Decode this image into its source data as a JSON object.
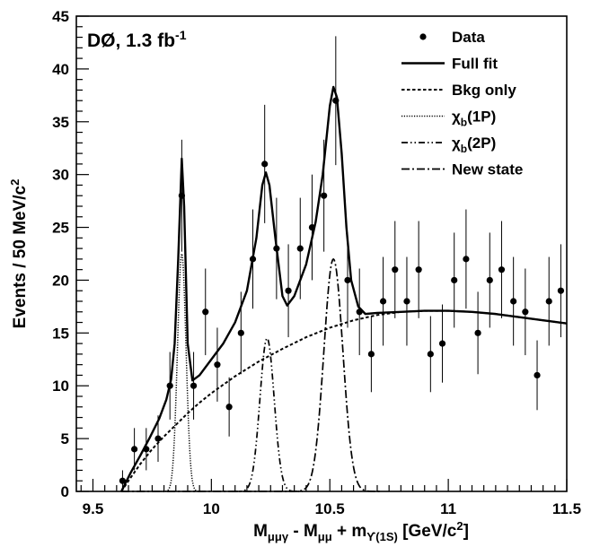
{
  "chart_data": {
    "type": "scatter",
    "annotation": {
      "main": "DØ, 1.3 fb",
      "sup": "-1"
    },
    "ylabel": {
      "main": "Events / 50 MeV/c",
      "sup": "2"
    },
    "xlabel": {
      "parts": [
        {
          "t": "M",
          "s": "n"
        },
        {
          "t": "μμγ",
          "s": "sub"
        },
        {
          "t": " - M",
          "s": "n"
        },
        {
          "t": "μμ",
          "s": "sub"
        },
        {
          "t": " + m",
          "s": "n"
        },
        {
          "t": "ϒ(1S)",
          "s": "sub"
        },
        {
          "t": " [GeV/c",
          "s": "n"
        },
        {
          "t": "2",
          "s": "sup"
        },
        {
          "t": "]",
          "s": "n"
        }
      ]
    },
    "xlim": [
      9.43,
      11.5
    ],
    "ylim": [
      0,
      45
    ],
    "xticks": [
      9.5,
      10,
      10.5,
      11,
      11.5
    ],
    "xtick_labels": [
      "9.5",
      "10",
      "10.5",
      "11",
      "11.5"
    ],
    "yticks": [
      0,
      5,
      10,
      15,
      20,
      25,
      30,
      35,
      40,
      45
    ],
    "ytick_labels": [
      "0",
      "5",
      "10",
      "15",
      "20",
      "25",
      "30",
      "35",
      "40",
      "45"
    ],
    "legend_position": "top-right",
    "legend": [
      {
        "key": "data",
        "parts": [
          {
            "t": "Data",
            "s": "n"
          }
        ]
      },
      {
        "key": "fullfit",
        "parts": [
          {
            "t": "Full fit",
            "s": "n"
          }
        ]
      },
      {
        "key": "bkg",
        "parts": [
          {
            "t": "Bkg only",
            "s": "n"
          }
        ]
      },
      {
        "key": "chi1p",
        "parts": [
          {
            "t": "χ",
            "s": "n"
          },
          {
            "t": "b",
            "s": "sub"
          },
          {
            "t": "(1P)",
            "s": "n"
          }
        ]
      },
      {
        "key": "chi2p",
        "parts": [
          {
            "t": "χ",
            "s": "n"
          },
          {
            "t": "b",
            "s": "sub"
          },
          {
            "t": "(2P)",
            "s": "n"
          }
        ]
      },
      {
        "key": "newstate",
        "parts": [
          {
            "t": "New state",
            "s": "n"
          }
        ]
      }
    ],
    "data_points": [
      {
        "x": 9.625,
        "y": 1,
        "err": 1
      },
      {
        "x": 9.675,
        "y": 4,
        "err": 2
      },
      {
        "x": 9.725,
        "y": 4,
        "err": 2
      },
      {
        "x": 9.775,
        "y": 5,
        "err": 2.2
      },
      {
        "x": 9.825,
        "y": 10,
        "err": 3.2
      },
      {
        "x": 9.875,
        "y": 28,
        "err": 5.3
      },
      {
        "x": 9.925,
        "y": 10,
        "err": 3.2
      },
      {
        "x": 9.975,
        "y": 17,
        "err": 4.1
      },
      {
        "x": 10.025,
        "y": 12,
        "err": 3.5
      },
      {
        "x": 10.075,
        "y": 8,
        "err": 2.8
      },
      {
        "x": 10.125,
        "y": 15,
        "err": 3.9
      },
      {
        "x": 10.175,
        "y": 22,
        "err": 4.7
      },
      {
        "x": 10.225,
        "y": 31,
        "err": 5.6
      },
      {
        "x": 10.275,
        "y": 23,
        "err": 4.8
      },
      {
        "x": 10.325,
        "y": 19,
        "err": 4.4
      },
      {
        "x": 10.375,
        "y": 23,
        "err": 4.8
      },
      {
        "x": 10.425,
        "y": 25,
        "err": 5
      },
      {
        "x": 10.475,
        "y": 28,
        "err": 5.3
      },
      {
        "x": 10.525,
        "y": 37,
        "err": 6.1
      },
      {
        "x": 10.575,
        "y": 20,
        "err": 4.5
      },
      {
        "x": 10.625,
        "y": 17,
        "err": 4.1
      },
      {
        "x": 10.675,
        "y": 13,
        "err": 3.6
      },
      {
        "x": 10.725,
        "y": 18,
        "err": 4.2
      },
      {
        "x": 10.775,
        "y": 21,
        "err": 4.6
      },
      {
        "x": 10.825,
        "y": 18,
        "err": 4.2
      },
      {
        "x": 10.875,
        "y": 21,
        "err": 4.6
      },
      {
        "x": 10.925,
        "y": 13,
        "err": 3.6
      },
      {
        "x": 10.975,
        "y": 14,
        "err": 3.7
      },
      {
        "x": 11.025,
        "y": 20,
        "err": 4.5
      },
      {
        "x": 11.075,
        "y": 22,
        "err": 4.7
      },
      {
        "x": 11.125,
        "y": 15,
        "err": 3.9
      },
      {
        "x": 11.175,
        "y": 20,
        "err": 4.5
      },
      {
        "x": 11.225,
        "y": 21,
        "err": 4.6
      },
      {
        "x": 11.275,
        "y": 18,
        "err": 4.2
      },
      {
        "x": 11.325,
        "y": 17,
        "err": 4.1
      },
      {
        "x": 11.375,
        "y": 11,
        "err": 3.3
      },
      {
        "x": 11.425,
        "y": 18,
        "err": 4.2
      },
      {
        "x": 11.475,
        "y": 19,
        "err": 4.4
      }
    ],
    "curves": {
      "bkg": {
        "threshold": 9.62,
        "points": [
          [
            9.62,
            0
          ],
          [
            9.65,
            1
          ],
          [
            9.7,
            2.6
          ],
          [
            9.75,
            4
          ],
          [
            9.8,
            5.2
          ],
          [
            9.85,
            6.3
          ],
          [
            9.9,
            7.4
          ],
          [
            9.95,
            8.4
          ],
          [
            10.0,
            9.3
          ],
          [
            10.1,
            10.9
          ],
          [
            10.2,
            12.3
          ],
          [
            10.3,
            13.5
          ],
          [
            10.4,
            14.6
          ],
          [
            10.5,
            15.5
          ],
          [
            10.6,
            16.2
          ],
          [
            10.7,
            16.7
          ],
          [
            10.8,
            17.0
          ],
          [
            10.9,
            17.1
          ],
          [
            11.0,
            17.1
          ],
          [
            11.1,
            17.0
          ],
          [
            11.2,
            16.8
          ],
          [
            11.3,
            16.5
          ],
          [
            11.4,
            16.2
          ],
          [
            11.5,
            15.9
          ]
        ]
      },
      "chi1p": {
        "mean": 9.875,
        "sigma": 0.018,
        "amp": 22.5
      },
      "chi2p": {
        "mean": 10.235,
        "sigma": 0.03,
        "amp": 14.5
      },
      "newstate": {
        "mean": 10.515,
        "sigma": 0.04,
        "amp": 22
      },
      "fullfit": {
        "points": [
          [
            9.62,
            0
          ],
          [
            9.66,
            1.8
          ],
          [
            9.7,
            3.4
          ],
          [
            9.74,
            5.1
          ],
          [
            9.78,
            6.9
          ],
          [
            9.81,
            8.7
          ],
          [
            9.83,
            10.6
          ],
          [
            9.845,
            14
          ],
          [
            9.86,
            22
          ],
          [
            9.875,
            31.5
          ],
          [
            9.885,
            27
          ],
          [
            9.9,
            14
          ],
          [
            9.92,
            10.5
          ],
          [
            9.95,
            11
          ],
          [
            10.0,
            12.5
          ],
          [
            10.05,
            14
          ],
          [
            10.1,
            16
          ],
          [
            10.15,
            19
          ],
          [
            10.19,
            24
          ],
          [
            10.215,
            29
          ],
          [
            10.23,
            30.2
          ],
          [
            10.245,
            29
          ],
          [
            10.27,
            24
          ],
          [
            10.3,
            18.5
          ],
          [
            10.32,
            17.6
          ],
          [
            10.35,
            18.5
          ],
          [
            10.4,
            21.5
          ],
          [
            10.44,
            25.5
          ],
          [
            10.47,
            30
          ],
          [
            10.5,
            36.5
          ],
          [
            10.515,
            38.3
          ],
          [
            10.53,
            37.3
          ],
          [
            10.55,
            32
          ],
          [
            10.57,
            25
          ],
          [
            10.59,
            20
          ],
          [
            10.62,
            17.5
          ],
          [
            10.65,
            16.8
          ],
          [
            10.7,
            16.9
          ],
          [
            10.8,
            17.0
          ],
          [
            10.9,
            17.1
          ],
          [
            11.0,
            17.1
          ],
          [
            11.1,
            17.0
          ],
          [
            11.2,
            16.8
          ],
          [
            11.3,
            16.5
          ],
          [
            11.4,
            16.2
          ],
          [
            11.5,
            15.9
          ]
        ]
      }
    }
  }
}
